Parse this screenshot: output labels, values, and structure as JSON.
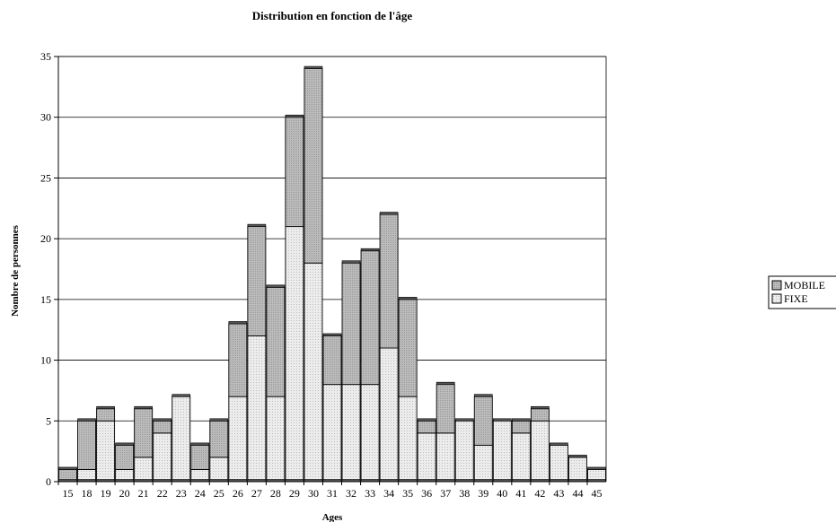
{
  "chart_data": {
    "type": "bar",
    "stacked": true,
    "title": "Distribution en fonction de l'âge",
    "xlabel": "Ages",
    "ylabel": "Nombre de personnes",
    "categories": [
      "15",
      "18",
      "19",
      "20",
      "21",
      "22",
      "23",
      "24",
      "25",
      "26",
      "27",
      "28",
      "29",
      "30",
      "31",
      "32",
      "33",
      "34",
      "35",
      "36",
      "37",
      "38",
      "39",
      "40",
      "41",
      "42",
      "43",
      "44",
      "45"
    ],
    "series": [
      {
        "name": "FIXE",
        "color": "#e6e6e6",
        "values": [
          0,
          1,
          5,
          1,
          2,
          4,
          7,
          1,
          2,
          7,
          12,
          7,
          21,
          18,
          8,
          8,
          8,
          11,
          7,
          4,
          4,
          5,
          3,
          5,
          4,
          5,
          3,
          2,
          1
        ]
      },
      {
        "name": "MOBILE",
        "color": "#b8b8b8",
        "values": [
          1,
          4,
          1,
          2,
          4,
          1,
          0,
          2,
          3,
          6,
          9,
          9,
          9,
          16,
          4,
          10,
          11,
          11,
          8,
          1,
          4,
          0,
          4,
          0,
          1,
          1,
          0,
          0,
          0
        ]
      }
    ],
    "ylim": [
      0,
      35
    ],
    "yticks": [
      0,
      5,
      10,
      15,
      20,
      25,
      30,
      35
    ],
    "grid": true,
    "legend_position": "right",
    "legend_order": [
      "MOBILE",
      "FIXE"
    ]
  }
}
